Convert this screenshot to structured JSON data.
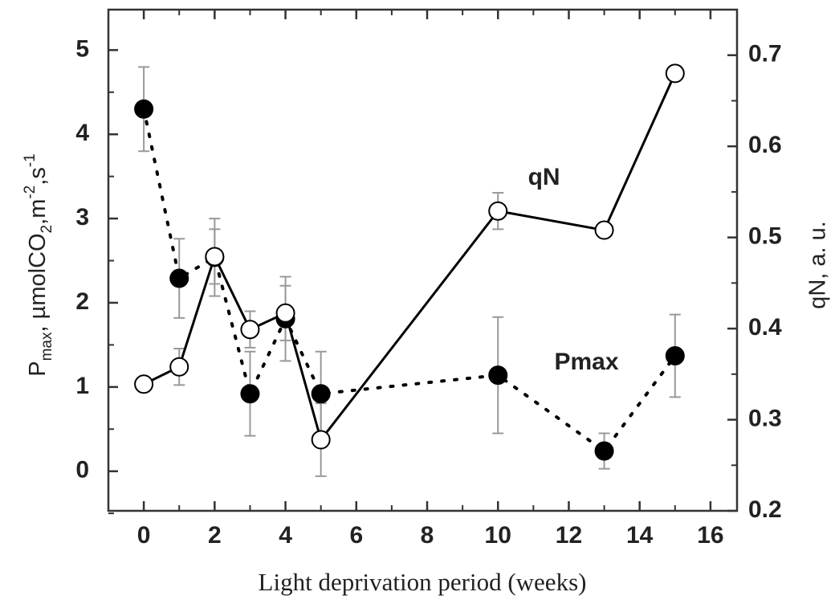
{
  "chart_data": {
    "type": "line",
    "x_label": "Light deprivation period (weeks)",
    "y_label": [
      {
        "text": "P"
      },
      {
        "text": "max",
        "shift": "sub"
      },
      {
        "text": ", µmolCO"
      },
      {
        "text": "2",
        "shift": "sub"
      },
      {
        "text": ",m"
      },
      {
        "text": "-2",
        "shift": "sup"
      },
      {
        "text": ",s"
      },
      {
        "text": "-1",
        "shift": "sup"
      }
    ],
    "y2_label": "qN, a. u.",
    "x": [
      0,
      1,
      2,
      3,
      4,
      5,
      10,
      13,
      15
    ],
    "series": [
      {
        "name": "Pmax",
        "color": "#000000",
        "marker": "filled",
        "dash": "dotted",
        "axis": "y",
        "values": [
          4.3,
          2.29,
          2.54,
          0.92,
          1.81,
          0.92,
          1.14,
          0.24,
          1.37
        ],
        "errors": [
          0.5,
          0.47,
          0.46,
          0.5,
          0.5,
          0.5,
          0.69,
          0.21,
          0.49
        ]
      },
      {
        "name": "qN",
        "color": "#000000",
        "marker": "open",
        "dash": "solid",
        "axis": "y2",
        "values": [
          0.339,
          0.358,
          0.479,
          0.399,
          0.417,
          0.278,
          0.529,
          0.508,
          0.68
        ],
        "errors": [
          null,
          0.02,
          0.03,
          0.02,
          0.03,
          0.04,
          0.02,
          null,
          null
        ]
      }
    ],
    "annotations": [
      {
        "text": "qN",
        "x": 11.3,
        "y2": 0.565
      },
      {
        "text": "Pmax",
        "x": 12.5,
        "y2": 0.362
      }
    ],
    "xlim": [
      -1,
      16.75
    ],
    "xticks": [
      0,
      2,
      4,
      6,
      8,
      10,
      12,
      14,
      16
    ],
    "xminorticks": [
      -1,
      1,
      3,
      5,
      7,
      9,
      11,
      13,
      15
    ],
    "ylim": [
      -0.47,
      5.48
    ],
    "yticks": [
      0,
      1,
      2,
      3,
      4,
      5
    ],
    "yminorticks": [
      -0.5,
      0.5,
      1.5,
      2.5,
      3.5,
      4.5
    ],
    "y2lim": [
      0.2,
      0.75
    ],
    "y2ticks": [
      {
        "value": 0.2,
        "label": "0.2"
      },
      {
        "value": 0.3,
        "label": "0.3"
      },
      {
        "value": 0.4,
        "label": "0.4"
      },
      {
        "value": 0.5,
        "label": "0.5"
      },
      {
        "value": 0.6,
        "label": "0.6"
      },
      {
        "value": 0.7,
        "label": "0.7"
      }
    ],
    "y2minorticks": [
      0.25,
      0.35,
      0.45,
      0.55,
      0.65
    ]
  }
}
